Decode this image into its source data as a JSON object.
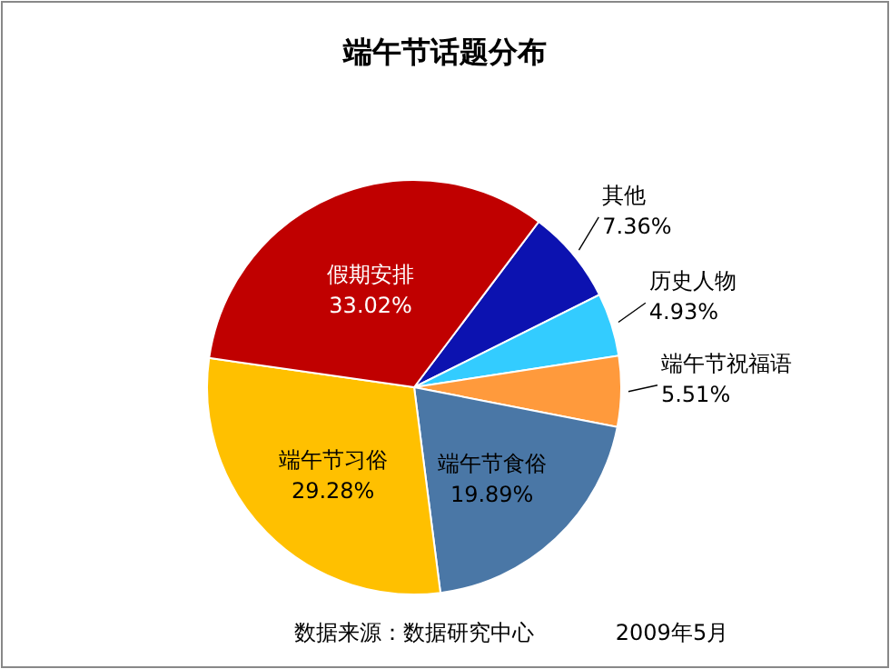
{
  "chart_data": {
    "type": "pie",
    "title": "端午节话题分布",
    "categories": [
      "其他",
      "历史人物",
      "端午节祝福语",
      "端午节食俗",
      "端午节习俗",
      "假期安排"
    ],
    "values": [
      7.36,
      4.93,
      5.51,
      19.89,
      29.28,
      33.02
    ],
    "colors": [
      "#0c12b0",
      "#33ccff",
      "#ff9a3c",
      "#4a77a6",
      "#ffc000",
      "#c00000"
    ],
    "value_labels": [
      "7.36%",
      "4.93%",
      "5.51%",
      "19.89%",
      "29.28%",
      "33.02%"
    ],
    "legend": false,
    "annotations": [
      "数据来源：数据研究中心",
      "2009年5月"
    ]
  }
}
